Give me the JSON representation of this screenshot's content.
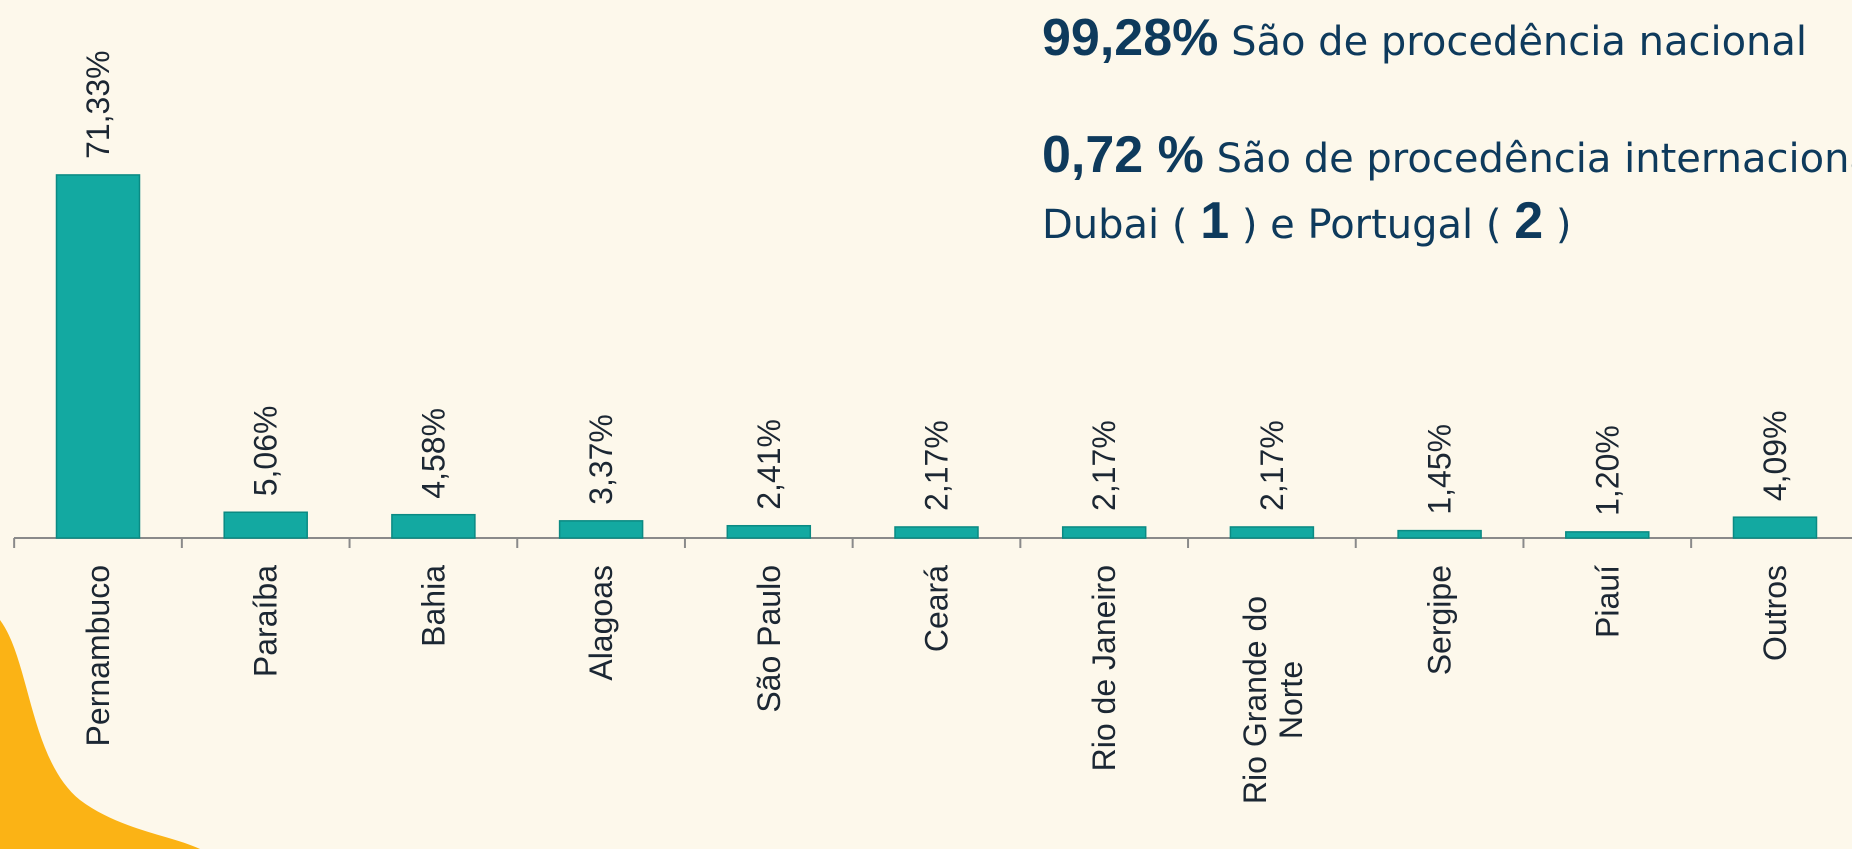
{
  "chart_data": {
    "type": "bar",
    "categories": [
      "Pernambuco",
      "Paraíba",
      "Bahia",
      "Alagoas",
      "São Paulo",
      "Ceará",
      "Rio de Janeiro",
      "Rio Grande do Norte",
      "Sergipe",
      "Piauí",
      "Outros"
    ],
    "values": [
      71.33,
      5.06,
      4.58,
      3.37,
      2.41,
      2.17,
      2.17,
      2.17,
      1.45,
      1.2,
      4.09
    ],
    "value_labels": [
      "71,33%",
      "5,06%",
      "4,58%",
      "3,37%",
      "2,41%",
      "2,17%",
      "2,17%",
      "2,17%",
      "1,45%",
      "1,20%",
      "4,09%"
    ],
    "color": "#13a9a1",
    "annotations": [
      {
        "bold": "99,28%",
        "text": "São de procedência nacional"
      },
      {
        "bold": "0,72 %",
        "text": "São de procedência internacional"
      },
      {
        "parts": [
          "Dubai (",
          "1",
          ") e Portugal (",
          "2",
          ")"
        ]
      }
    ]
  }
}
